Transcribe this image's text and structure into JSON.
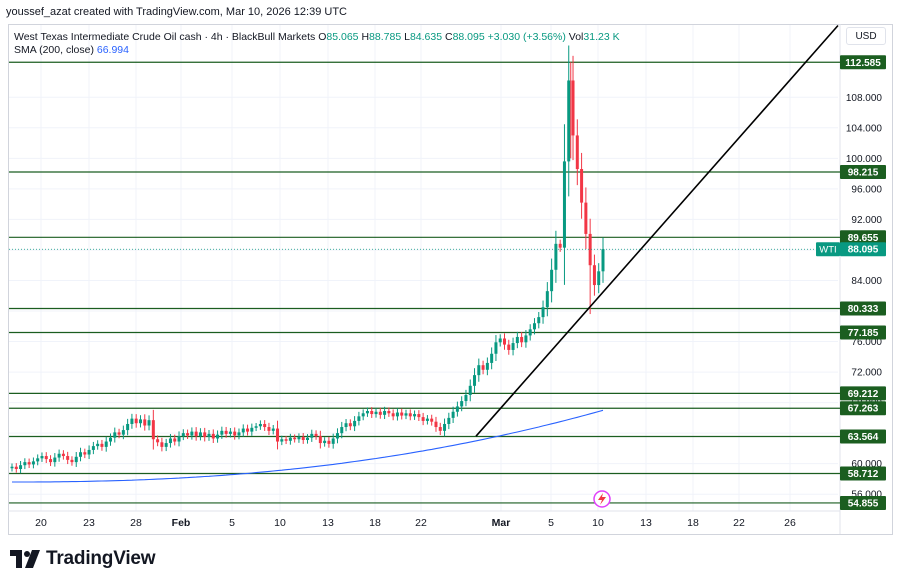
{
  "header": {
    "credit": "youssef_azat created with TradingView.com, Mar 10, 2026 12:39 UTC"
  },
  "legend": {
    "title": "West Texas Intermediate Crude Oil cash · 4h · BlackBull Markets",
    "o_label": "O",
    "o_value": "85.065",
    "h_label": "H",
    "h_value": "88.785",
    "l_label": "L",
    "l_value": "84.635",
    "c_label": "C",
    "c_value": "88.095",
    "change": "+3.030 (+3.56%)",
    "vol_label": "Vol",
    "vol_value": "31.23 K",
    "sma_label": "SMA (200, close)",
    "sma_value": "66.994"
  },
  "currency": "USD",
  "footer": {
    "brand": "TradingView"
  },
  "colors": {
    "up": "#089981",
    "down": "#f23645",
    "level": "#1b5e20",
    "sma": "#2962ff",
    "trend": "#000000",
    "grid": "#f0f3fa",
    "axis_text": "#131722"
  },
  "chart_data": {
    "type": "candlestick",
    "ylim": [
      53.8,
      117.6
    ],
    "y_ticks": [
      56,
      60,
      64,
      68,
      72,
      76,
      80,
      84,
      88,
      92,
      96,
      100,
      104,
      108
    ],
    "y_tick_labels": [
      "56.000",
      "60.000",
      "64.000",
      "68.000",
      "72.000",
      "76.000",
      "80.000",
      "84.000",
      "88.000",
      "92.000",
      "96.000",
      "100.000",
      "104.000",
      "108.000"
    ],
    "x_axis_labels": [
      "20",
      "23",
      "Jan 28",
      "Feb",
      "5",
      "10",
      "13",
      "18",
      "22",
      "Mar",
      "5",
      "10",
      "13",
      "18",
      "22",
      "26"
    ],
    "x_tick_labels": [
      "20",
      "23",
      "28",
      "Feb",
      "5",
      "10",
      "13",
      "18",
      "22",
      "Mar",
      "5",
      "10",
      "13",
      "18",
      "22",
      "26"
    ],
    "horizontal_levels": [
      112.585,
      98.215,
      89.655,
      80.333,
      77.185,
      69.212,
      67.263,
      63.564,
      58.712,
      54.855
    ],
    "level_labels": [
      "112.585",
      "98.215",
      "89.655",
      "80.333",
      "77.185",
      "69.212",
      "67.263",
      "63.564",
      "58.712",
      "54.855"
    ],
    "last_price": {
      "label": "WTI",
      "value": 88.095,
      "value_label": "88.095"
    },
    "sma_value": 66.994,
    "trendline": {
      "start_value": 63.6,
      "end_value": 117.4
    },
    "close_path": [
      59.6,
      59.3,
      59.8,
      60.2,
      59.9,
      60.3,
      60.7,
      61.0,
      60.6,
      60.2,
      60.8,
      61.3,
      61.0,
      60.5,
      60.2,
      60.9,
      61.5,
      61.2,
      61.8,
      62.3,
      62.6,
      62.2,
      62.9,
      63.4,
      64.1,
      63.8,
      64.4,
      65.2,
      65.9,
      65.3,
      65.8,
      65.0,
      65.7,
      63.2,
      62.8,
      62.2,
      62.7,
      63.3,
      62.9,
      63.6,
      64.0,
      63.7,
      64.2,
      63.6,
      64.1,
      63.5,
      63.9,
      63.3,
      63.8,
      64.3,
      63.9,
      64.2,
      63.7,
      64.1,
      64.6,
      64.2,
      64.7,
      64.9,
      65.2,
      64.8,
      64.3,
      64.6,
      62.9,
      63.2,
      63.0,
      63.4,
      63.2,
      63.5,
      63.1,
      63.4,
      63.9,
      63.6,
      62.7,
      63.0,
      62.6,
      63.3,
      64.0,
      64.8,
      65.3,
      64.9,
      65.6,
      66.2,
      66.6,
      66.9,
      66.5,
      66.8,
      66.4,
      66.9,
      66.6,
      66.2,
      66.7,
      66.3,
      66.6,
      66.2,
      66.5,
      66.1,
      65.6,
      65.9,
      65.5,
      64.8,
      64.3,
      65.2,
      66.0,
      66.8,
      67.5,
      68.2,
      69.0,
      70.2,
      71.6,
      72.9,
      72.3,
      73.2,
      74.4,
      75.9,
      76.4,
      75.6,
      74.9,
      75.8,
      76.6,
      75.9,
      76.8,
      77.6,
      78.4,
      79.2,
      80.5,
      82.6,
      85.4,
      88.8,
      88.3,
      99.6,
      110.2,
      103.0,
      98.6,
      94.2,
      90.1,
      86.0,
      83.4,
      85.2,
      88.1
    ]
  }
}
